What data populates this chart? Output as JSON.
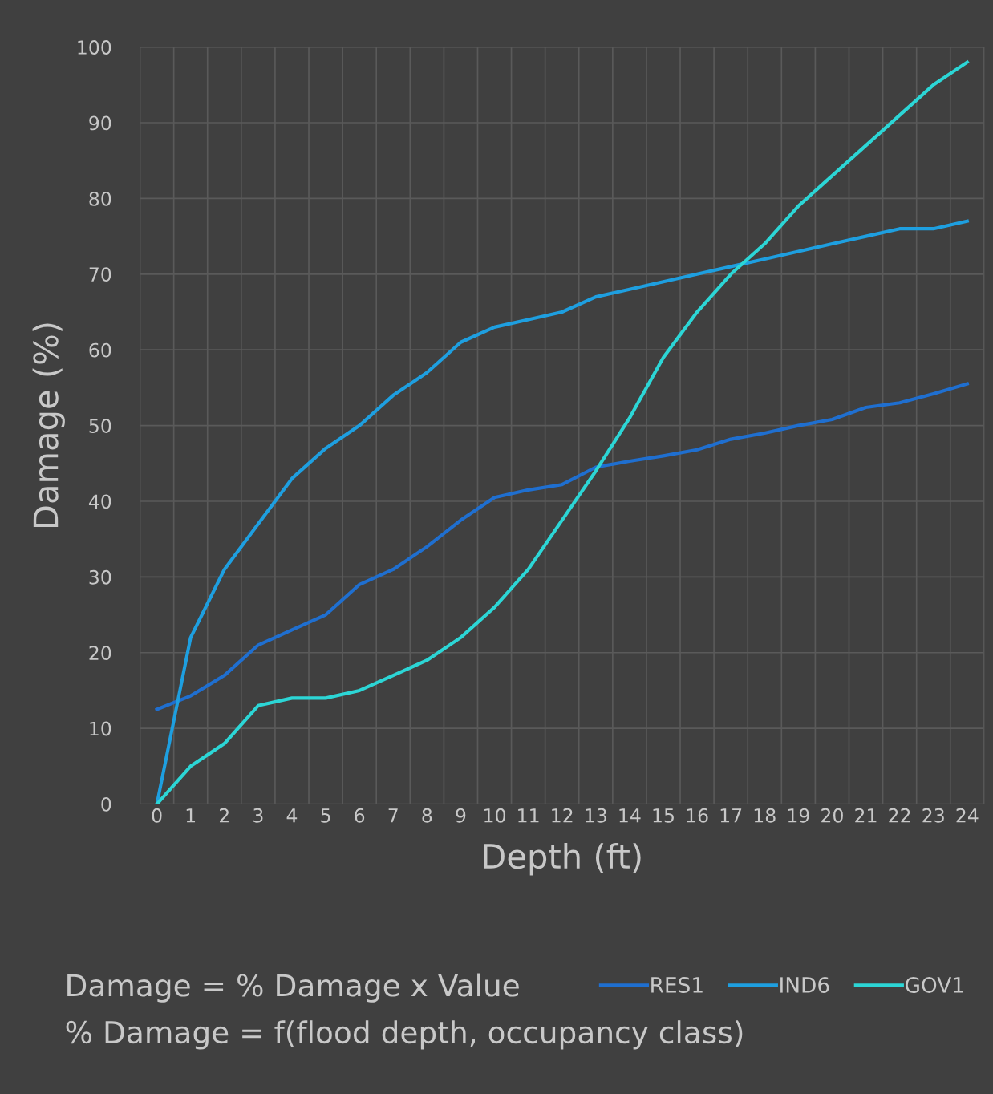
{
  "chart_data": {
    "type": "line",
    "xlabel": "Depth (ft)",
    "ylabel": "Damage (%)",
    "categories": [
      "0",
      "1",
      "2",
      "3",
      "4",
      "5",
      "6",
      "7",
      "8",
      "9",
      "10",
      "11",
      "12",
      "13",
      "14",
      "15",
      "16",
      "17",
      "18",
      "19",
      "20",
      "21",
      "22",
      "23",
      "24"
    ],
    "series": [
      {
        "name": "RES1",
        "color": "#1f6fd0",
        "values": [
          12.5,
          14.3,
          17,
          21,
          23,
          25,
          29,
          31,
          34,
          37.5,
          40.5,
          41.5,
          42.2,
          44.5,
          45.3,
          46,
          46.8,
          48.2,
          49,
          50,
          50.8,
          52.4,
          53,
          54.2,
          55.5
        ]
      },
      {
        "name": "IND6",
        "color": "#1e9fe0",
        "values": [
          0,
          22,
          31,
          37,
          43,
          47,
          50,
          54,
          57,
          61,
          63,
          64,
          65,
          67,
          68,
          69,
          70,
          71,
          72,
          73,
          74,
          75,
          76,
          76,
          77
        ]
      },
      {
        "name": "GOV1",
        "color": "#2cd6d6",
        "values": [
          0,
          5,
          8,
          13,
          14,
          14,
          15,
          17,
          19,
          22,
          26,
          31,
          37.5,
          44,
          51,
          59,
          65,
          70,
          74,
          79,
          83,
          87,
          91,
          95,
          98
        ]
      }
    ],
    "ylim": [
      0,
      100
    ],
    "yticks": [
      0,
      10,
      20,
      30,
      40,
      50,
      60,
      70,
      80,
      90,
      100
    ],
    "grid": true,
    "legend": "bottom right",
    "marker": "none",
    "line_style": "solid",
    "annotations": [
      "Damage = % Damage x Value",
      "% Damage = f(flood depth, occupancy class)"
    ]
  }
}
